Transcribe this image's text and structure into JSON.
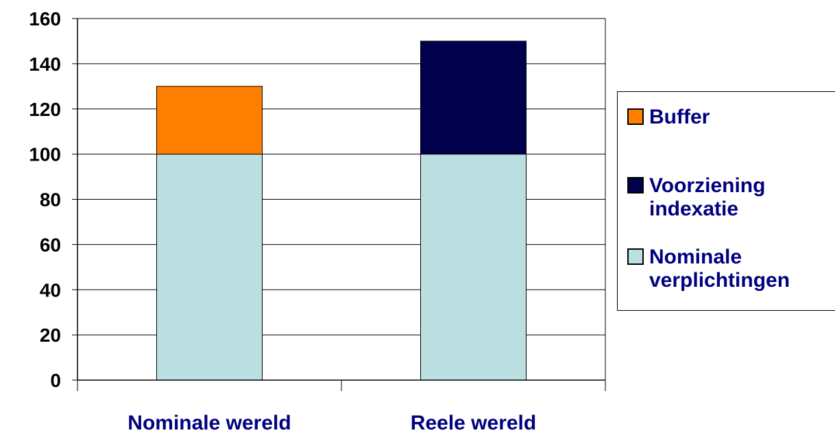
{
  "chart_data": {
    "type": "bar",
    "stacked": true,
    "title": "",
    "xlabel": "",
    "ylabel": "",
    "categories": [
      "Nominale wereld",
      "Reele wereld"
    ],
    "series": [
      {
        "name": "Nominale verplichtingen",
        "values": [
          100,
          100
        ],
        "color": "#BCE0E1"
      },
      {
        "name": "Buffer",
        "values": [
          30,
          0
        ],
        "color": "#FF8000"
      },
      {
        "name": "Voorziening indexatie",
        "values": [
          0,
          50
        ],
        "color": "#00004D"
      }
    ],
    "ylim": [
      0,
      160
    ],
    "yticks": [
      0,
      20,
      40,
      60,
      80,
      100,
      120,
      140,
      160
    ],
    "grid": true,
    "legend_position": "right",
    "legend": [
      {
        "label": "Buffer",
        "color": "#FF8000"
      },
      {
        "label": "Voorziening\nindexatie",
        "color": "#00004D"
      },
      {
        "label": "Nominale\nverplichtingen",
        "color": "#BCE0E1"
      }
    ]
  }
}
